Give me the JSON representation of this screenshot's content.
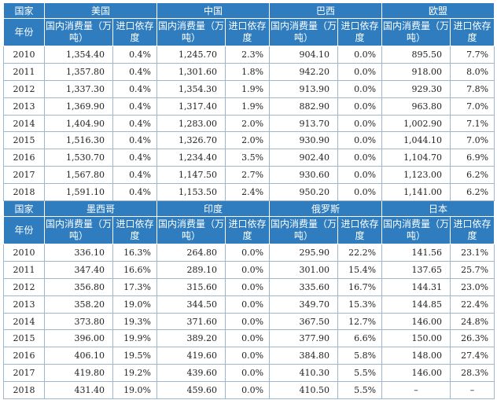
{
  "headers": {
    "country": "国家",
    "year": "年份",
    "consumption": "国内消费量（万吨）",
    "dependency": "进口依存度"
  },
  "sections": [
    {
      "countries": [
        "美国",
        "中国",
        "巴西",
        "欧盟"
      ],
      "rows": [
        {
          "year": "2010",
          "values": [
            "1,354.40",
            "0.4%",
            "1,245.70",
            "2.3%",
            "904.10",
            "0.0%",
            "895.50",
            "7.7%"
          ]
        },
        {
          "year": "2011",
          "values": [
            "1,357.80",
            "0.4%",
            "1,301.60",
            "1.8%",
            "942.20",
            "0.0%",
            "918.00",
            "8.0%"
          ]
        },
        {
          "year": "2012",
          "values": [
            "1,337.30",
            "0.4%",
            "1,354.30",
            "1.9%",
            "913.90",
            "0.0%",
            "929.30",
            "7.8%"
          ]
        },
        {
          "year": "2013",
          "values": [
            "1,369.90",
            "0.4%",
            "1,317.40",
            "1.9%",
            "882.90",
            "0.0%",
            "963.80",
            "7.0%"
          ]
        },
        {
          "year": "2014",
          "values": [
            "1,404.90",
            "0.4%",
            "1,283.00",
            "2.0%",
            "913.70",
            "0.0%",
            "1,002.90",
            "7.1%"
          ]
        },
        {
          "year": "2015",
          "values": [
            "1,516.30",
            "0.4%",
            "1,326.70",
            "2.0%",
            "930.90",
            "0.0%",
            "1,044.10",
            "7.0%"
          ]
        },
        {
          "year": "2016",
          "values": [
            "1,530.70",
            "0.4%",
            "1,234.40",
            "3.5%",
            "902.40",
            "0.0%",
            "1,104.70",
            "6.9%"
          ]
        },
        {
          "year": "2017",
          "values": [
            "1,567.80",
            "0.4%",
            "1,147.50",
            "2.7%",
            "930.60",
            "0.0%",
            "1,123.00",
            "6.2%"
          ]
        },
        {
          "year": "2018",
          "values": [
            "1,591.10",
            "0.4%",
            "1,153.50",
            "2.4%",
            "950.20",
            "0.0%",
            "1,141.00",
            "6.2%"
          ]
        }
      ]
    },
    {
      "countries": [
        "墨西哥",
        "印度",
        "俄罗斯",
        "日本"
      ],
      "rows": [
        {
          "year": "2010",
          "values": [
            "336.10",
            "16.3%",
            "264.80",
            "0.0%",
            "295.90",
            "22.2%",
            "141.56",
            "23.1%"
          ]
        },
        {
          "year": "2011",
          "values": [
            "347.40",
            "16.6%",
            "289.10",
            "0.0%",
            "301.00",
            "15.4%",
            "137.65",
            "25.7%"
          ]
        },
        {
          "year": "2012",
          "values": [
            "356.80",
            "17.3%",
            "315.60",
            "0.0%",
            "335.60",
            "16.7%",
            "144.31",
            "23.0%"
          ]
        },
        {
          "year": "2013",
          "values": [
            "358.20",
            "19.0%",
            "344.50",
            "0.0%",
            "349.70",
            "15.3%",
            "144.85",
            "22.4%"
          ]
        },
        {
          "year": "2014",
          "values": [
            "373.80",
            "19.3%",
            "371.60",
            "0.0%",
            "367.50",
            "12.7%",
            "146.00",
            "24.8%"
          ]
        },
        {
          "year": "2015",
          "values": [
            "396.00",
            "19.9%",
            "389.20",
            "0.0%",
            "377.90",
            "6.6%",
            "150.00",
            "26.3%"
          ]
        },
        {
          "year": "2016",
          "values": [
            "406.10",
            "19.5%",
            "419.60",
            "0.0%",
            "384.80",
            "5.8%",
            "148.00",
            "27.4%"
          ]
        },
        {
          "year": "2017",
          "values": [
            "419.80",
            "19.2%",
            "439.60",
            "0.0%",
            "410.30",
            "5.5%",
            "146.00",
            "28.3%"
          ]
        },
        {
          "year": "2018",
          "values": [
            "431.40",
            "19.0%",
            "459.60",
            "0.0%",
            "410.50",
            "5.5%",
            "–",
            "–"
          ]
        }
      ]
    }
  ]
}
